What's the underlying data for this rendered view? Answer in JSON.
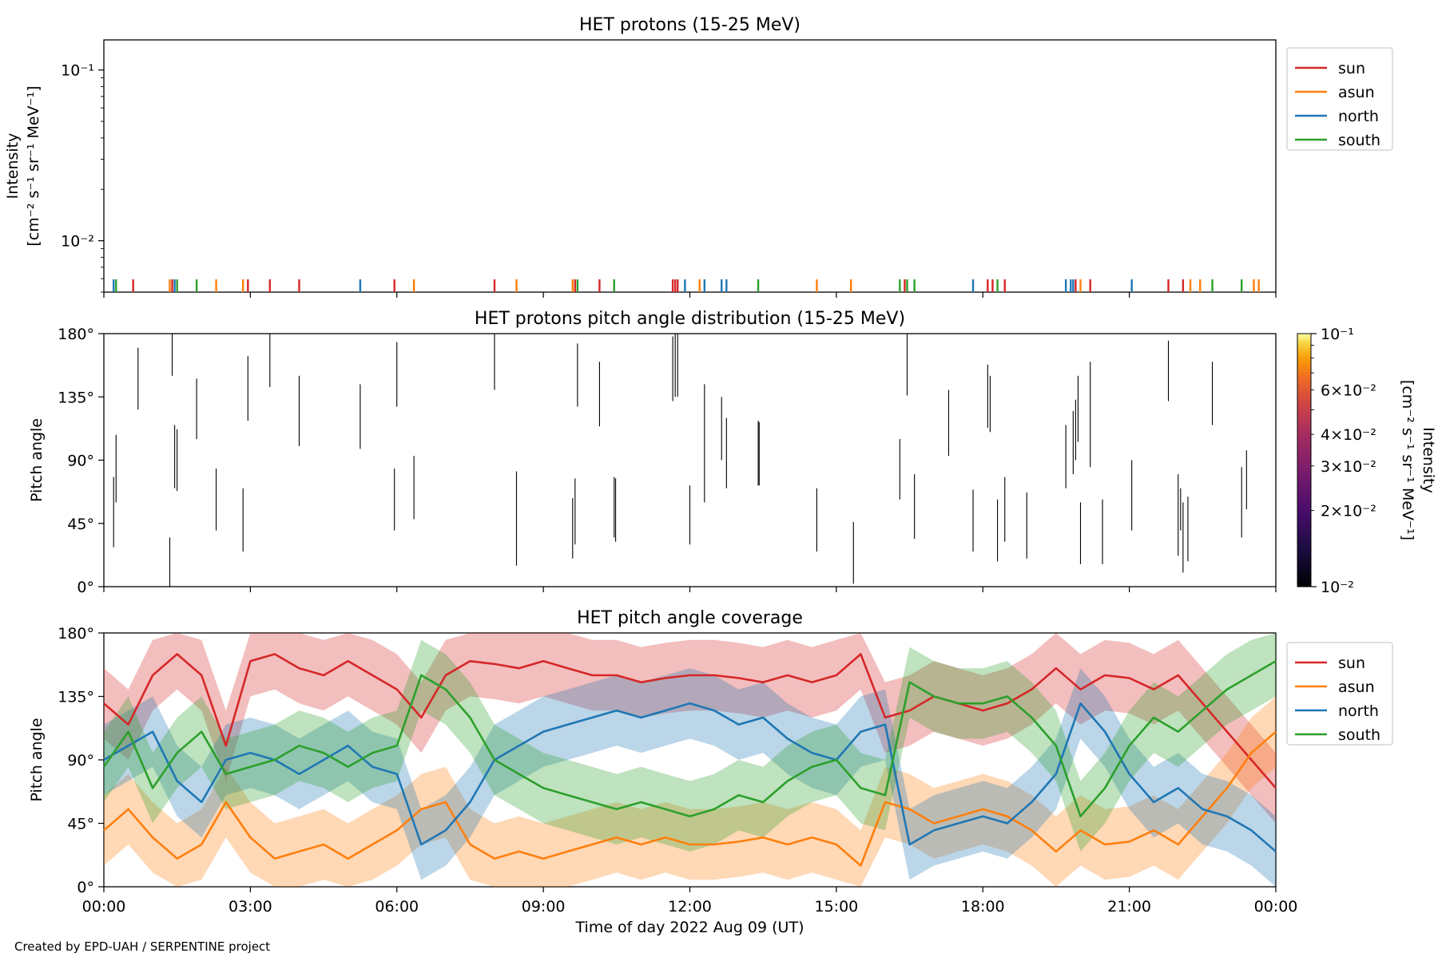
{
  "credit": "Created by EPD-UAH / SERPENTINE project",
  "chart_data": [
    {
      "type": "line",
      "title": "HET protons (15-25 MeV)",
      "ylabel_line1": "Intensity",
      "ylabel_line2": "[cm⁻² s⁻¹ sr⁻¹ MeV⁻¹]",
      "yscale": "log",
      "ylim": [
        0.005,
        0.15
      ],
      "yticks": [
        {
          "value": 0.1,
          "label": "10⁻¹"
        },
        {
          "value": 0.01,
          "label": "10⁻²"
        }
      ],
      "xlim": [
        0,
        24
      ],
      "legend_position": "outside-upper-right",
      "series": [
        {
          "name": "sun",
          "color": "#d62728",
          "spike_times": [
            0.6,
            1.4,
            2.95,
            3.4,
            4.0,
            5.95,
            8.0,
            9.65,
            10.15,
            11.65,
            11.7,
            11.75,
            16.4,
            18.1,
            18.2,
            18.45,
            19.9,
            20.2,
            21.8,
            22.1
          ]
        },
        {
          "name": "asun",
          "color": "#ff7f0e",
          "spike_times": [
            1.35,
            2.3,
            2.85,
            6.35,
            8.45,
            9.6,
            12.2,
            14.6,
            15.3,
            20.0,
            22.25,
            22.45,
            23.55,
            23.65
          ]
        },
        {
          "name": "north",
          "color": "#1f77b4",
          "spike_times": [
            0.2,
            1.45,
            5.25,
            11.9,
            12.3,
            12.65,
            12.75,
            17.8,
            19.7,
            19.8,
            19.85,
            21.05
          ]
        },
        {
          "name": "south",
          "color": "#2ca02c",
          "spike_times": [
            0.25,
            1.5,
            1.9,
            9.7,
            10.45,
            13.4,
            16.3,
            16.45,
            16.6,
            18.3,
            22.7,
            23.3
          ]
        }
      ]
    },
    {
      "type": "heatmap",
      "title": "HET protons pitch angle distribution (15-25 MeV)",
      "ylabel": "Pitch angle",
      "ylim": [
        0,
        180
      ],
      "yticks": [
        "0°",
        "45°",
        "90°",
        "135°",
        "180°"
      ],
      "xlim": [
        0,
        24
      ],
      "colormap": "inferno",
      "colorbar_label_line1": "Intensity",
      "colorbar_label_line2": "[cm⁻² s⁻¹ sr⁻¹ MeV⁻¹]",
      "colorbar_ticks": [
        {
          "value": 0.1,
          "label": "10⁻¹"
        },
        {
          "value": 0.06,
          "label": "6×10⁻²"
        },
        {
          "value": 0.04,
          "label": "4×10⁻²"
        },
        {
          "value": 0.03,
          "label": "3×10⁻²"
        },
        {
          "value": 0.02,
          "label": "2×10⁻²"
        },
        {
          "value": 0.01,
          "label": "10⁻²"
        }
      ],
      "segments": [
        [
          0.2,
          28,
          78
        ],
        [
          0.25,
          60,
          108
        ],
        [
          0.7,
          126,
          170
        ],
        [
          1.35,
          0,
          35
        ],
        [
          1.4,
          150,
          180
        ],
        [
          1.45,
          70,
          115
        ],
        [
          1.5,
          68,
          112
        ],
        [
          1.9,
          105,
          148
        ],
        [
          2.3,
          40,
          84
        ],
        [
          2.85,
          25,
          70
        ],
        [
          2.95,
          118,
          164
        ],
        [
          3.4,
          142,
          180
        ],
        [
          4.0,
          100,
          150
        ],
        [
          5.25,
          98,
          144
        ],
        [
          5.95,
          40,
          84
        ],
        [
          6.0,
          128,
          174
        ],
        [
          6.35,
          48,
          93
        ],
        [
          8.0,
          140,
          180
        ],
        [
          8.45,
          15,
          82
        ],
        [
          9.6,
          20,
          63
        ],
        [
          9.65,
          30,
          77
        ],
        [
          9.7,
          128,
          173
        ],
        [
          10.15,
          114,
          160
        ],
        [
          10.45,
          35,
          78
        ],
        [
          10.48,
          32,
          77
        ],
        [
          11.65,
          132,
          178
        ],
        [
          11.7,
          135,
          180
        ],
        [
          11.75,
          135,
          180
        ],
        [
          12.0,
          30,
          72
        ],
        [
          12.3,
          60,
          144
        ],
        [
          12.65,
          90,
          135
        ],
        [
          12.75,
          70,
          120
        ],
        [
          13.4,
          72,
          118
        ],
        [
          13.42,
          72,
          117
        ],
        [
          14.6,
          25,
          70
        ],
        [
          15.35,
          2,
          46
        ],
        [
          16.3,
          62,
          105
        ],
        [
          16.45,
          136,
          180
        ],
        [
          16.6,
          34,
          80
        ],
        [
          17.3,
          93,
          140
        ],
        [
          17.8,
          25,
          69
        ],
        [
          18.1,
          113,
          158
        ],
        [
          18.15,
          110,
          150
        ],
        [
          18.3,
          18,
          62
        ],
        [
          18.45,
          32,
          78
        ],
        [
          18.9,
          20,
          67
        ],
        [
          19.7,
          70,
          115
        ],
        [
          19.85,
          80,
          125
        ],
        [
          19.9,
          90,
          133
        ],
        [
          19.95,
          103,
          150
        ],
        [
          20.0,
          16,
          60
        ],
        [
          20.2,
          85,
          160
        ],
        [
          20.45,
          16,
          62
        ],
        [
          21.05,
          40,
          90
        ],
        [
          21.8,
          132,
          175
        ],
        [
          22.0,
          22,
          80
        ],
        [
          22.05,
          40,
          70
        ],
        [
          22.1,
          10,
          60
        ],
        [
          22.2,
          18,
          64
        ],
        [
          22.7,
          115,
          160
        ],
        [
          23.3,
          35,
          85
        ],
        [
          23.4,
          55,
          97
        ]
      ]
    },
    {
      "type": "line",
      "title": "HET pitch angle coverage",
      "ylabel": "Pitch angle",
      "xlabel": "Time of day 2022 Aug 09 (UT)",
      "ylim": [
        0,
        180
      ],
      "yticks": [
        "0°",
        "45°",
        "90°",
        "135°",
        "180°"
      ],
      "xlim": [
        0,
        24
      ],
      "xticks": [
        "00:00",
        "03:00",
        "06:00",
        "09:00",
        "12:00",
        "15:00",
        "18:00",
        "21:00",
        "00:00"
      ],
      "legend_position": "outside-upper-right",
      "band_halfwidth_deg": 25,
      "series": [
        {
          "name": "sun",
          "color": "#d62728",
          "x": [
            0,
            0.5,
            1.0,
            1.5,
            2.0,
            2.5,
            3.0,
            3.5,
            4.0,
            4.5,
            5.0,
            5.5,
            6.0,
            6.5,
            7.0,
            7.5,
            8.0,
            8.5,
            9.0,
            9.5,
            10.0,
            10.5,
            11.0,
            11.5,
            12.0,
            12.5,
            13.0,
            13.5,
            14.0,
            14.5,
            15.0,
            15.5,
            16.0,
            16.5,
            17.0,
            17.5,
            18.0,
            18.5,
            19.0,
            19.5,
            20.0,
            20.5,
            21.0,
            21.5,
            22.0,
            22.5,
            23.0,
            23.5,
            24.0
          ],
          "y": [
            130,
            115,
            150,
            165,
            150,
            100,
            160,
            165,
            155,
            150,
            160,
            150,
            140,
            120,
            150,
            160,
            158,
            155,
            160,
            155,
            150,
            150,
            145,
            148,
            150,
            150,
            148,
            145,
            150,
            145,
            150,
            165,
            120,
            125,
            135,
            130,
            125,
            130,
            140,
            155,
            140,
            150,
            148,
            140,
            150,
            130,
            110,
            90,
            70
          ]
        },
        {
          "name": "asun",
          "color": "#ff7f0e",
          "x": [
            0,
            0.5,
            1.0,
            1.5,
            2.0,
            2.5,
            3.0,
            3.5,
            4.0,
            4.5,
            5.0,
            5.5,
            6.0,
            6.5,
            7.0,
            7.5,
            8.0,
            8.5,
            9.0,
            9.5,
            10.0,
            10.5,
            11.0,
            11.5,
            12.0,
            12.5,
            13.0,
            13.5,
            14.0,
            14.5,
            15.0,
            15.5,
            16.0,
            16.5,
            17.0,
            17.5,
            18.0,
            18.5,
            19.0,
            19.5,
            20.0,
            20.5,
            21.0,
            21.5,
            22.0,
            22.5,
            23.0,
            23.5,
            24.0
          ],
          "y": [
            40,
            55,
            35,
            20,
            30,
            60,
            35,
            20,
            25,
            30,
            20,
            30,
            40,
            55,
            60,
            30,
            20,
            25,
            20,
            25,
            30,
            35,
            30,
            35,
            30,
            30,
            32,
            35,
            30,
            35,
            30,
            15,
            60,
            55,
            45,
            50,
            55,
            50,
            40,
            25,
            40,
            30,
            32,
            40,
            30,
            50,
            70,
            95,
            110
          ]
        },
        {
          "name": "north",
          "color": "#1f77b4",
          "x": [
            0,
            0.5,
            1.0,
            1.5,
            2.0,
            2.5,
            3.0,
            3.5,
            4.0,
            4.5,
            5.0,
            5.5,
            6.0,
            6.5,
            7.0,
            7.5,
            8.0,
            8.5,
            9.0,
            9.5,
            10.0,
            10.5,
            11.0,
            11.5,
            12.0,
            12.5,
            13.0,
            13.5,
            14.0,
            14.5,
            15.0,
            15.5,
            16.0,
            16.5,
            17.0,
            17.5,
            18.0,
            18.5,
            19.0,
            19.5,
            20.0,
            20.5,
            21.0,
            21.5,
            22.0,
            22.5,
            23.0,
            23.5,
            24.0
          ],
          "y": [
            90,
            100,
            110,
            75,
            60,
            90,
            95,
            90,
            80,
            90,
            100,
            85,
            80,
            30,
            40,
            60,
            90,
            100,
            110,
            115,
            120,
            125,
            120,
            125,
            130,
            125,
            115,
            120,
            105,
            95,
            90,
            110,
            115,
            30,
            40,
            45,
            50,
            45,
            60,
            80,
            130,
            110,
            80,
            60,
            70,
            55,
            50,
            40,
            25
          ]
        },
        {
          "name": "south",
          "color": "#2ca02c",
          "x": [
            0,
            0.5,
            1.0,
            1.5,
            2.0,
            2.5,
            3.0,
            3.5,
            4.0,
            4.5,
            5.0,
            5.5,
            6.0,
            6.5,
            7.0,
            7.5,
            8.0,
            8.5,
            9.0,
            9.5,
            10.0,
            10.5,
            11.0,
            11.5,
            12.0,
            12.5,
            13.0,
            13.5,
            14.0,
            14.5,
            15.0,
            15.5,
            16.0,
            16.5,
            17.0,
            17.5,
            18.0,
            18.5,
            19.0,
            19.5,
            20.0,
            20.5,
            21.0,
            21.5,
            22.0,
            22.5,
            23.0,
            23.5,
            24.0
          ],
          "y": [
            85,
            110,
            70,
            95,
            110,
            80,
            85,
            90,
            100,
            95,
            85,
            95,
            100,
            150,
            140,
            120,
            90,
            80,
            70,
            65,
            60,
            55,
            60,
            55,
            50,
            55,
            65,
            60,
            75,
            85,
            90,
            70,
            65,
            145,
            135,
            130,
            130,
            135,
            120,
            100,
            50,
            70,
            100,
            120,
            110,
            125,
            140,
            150,
            160
          ]
        }
      ]
    }
  ]
}
